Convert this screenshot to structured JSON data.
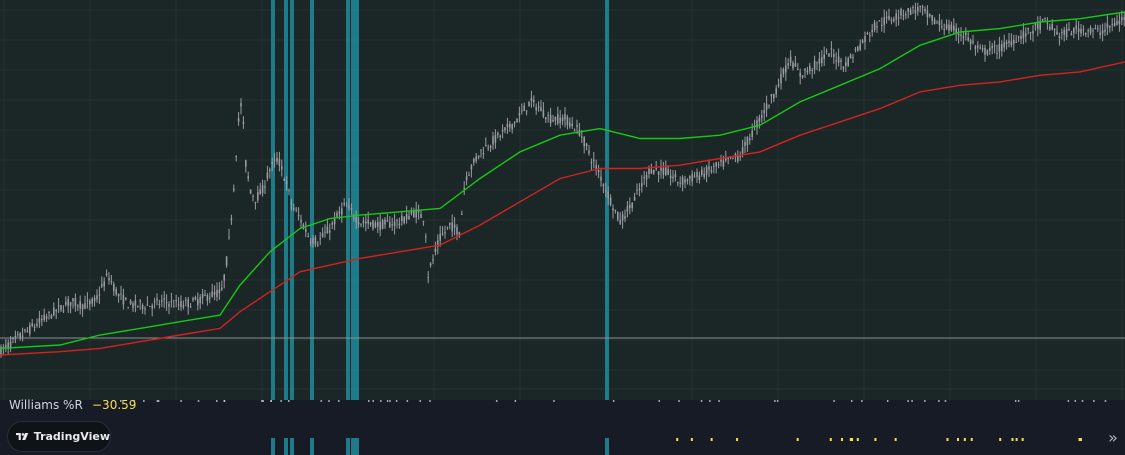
{
  "indicator": {
    "name": "Williams %R",
    "value": "−30.59"
  },
  "brand": {
    "name": "TradingView"
  },
  "icons": {
    "logo": "tradingview-logo-icon",
    "expand": "double-chevron-right-icon"
  },
  "colors": {
    "background": "#1b2626",
    "grid": "#263232",
    "candles": "#9a9ca4",
    "fast_ma": "#16c916",
    "slow_ma": "#d32222",
    "highlight": "#1e8c9c",
    "indicator_value": "#f7e14a",
    "horizontal_line": "#8a9196"
  },
  "chart_data": {
    "type": "candlestick",
    "title": "",
    "series": [
      {
        "name": "",
        "role": "price",
        "color": "#9a9ca4",
        "x": [
          0,
          40,
          70,
          85,
          95,
          108,
          118,
          130,
          150,
          165,
          180,
          195,
          210,
          222,
          228,
          233,
          238,
          242,
          245,
          250,
          255,
          262,
          270,
          278,
          285,
          292,
          300,
          310,
          318,
          330,
          345,
          360,
          380,
          400,
          415,
          425,
          428,
          440,
          450,
          460,
          465,
          480,
          500,
          515,
          530,
          540,
          550,
          565,
          580,
          590,
          600,
          610,
          620,
          635,
          650,
          665,
          680,
          700,
          720,
          740,
          760,
          775,
          790,
          800,
          815,
          830,
          845,
          860,
          875,
          890,
          905,
          920,
          935,
          950,
          965,
          980,
          1000,
          1015,
          1030,
          1045,
          1060,
          1080,
          1100,
          1125
        ],
        "y": [
          0,
          0.09,
          0.15,
          0.14,
          0.15,
          0.23,
          0.17,
          0.14,
          0.14,
          0.15,
          0.14,
          0.15,
          0.17,
          0.18,
          0.3,
          0.46,
          0.68,
          0.76,
          0.58,
          0.49,
          0.46,
          0.48,
          0.55,
          0.58,
          0.52,
          0.44,
          0.4,
          0.34,
          0.33,
          0.37,
          0.44,
          0.39,
          0.38,
          0.39,
          0.42,
          0.4,
          0.23,
          0.34,
          0.38,
          0.36,
          0.52,
          0.6,
          0.65,
          0.69,
          0.75,
          0.73,
          0.7,
          0.7,
          0.66,
          0.59,
          0.53,
          0.46,
          0.39,
          0.46,
          0.55,
          0.54,
          0.51,
          0.53,
          0.56,
          0.59,
          0.7,
          0.78,
          0.88,
          0.83,
          0.86,
          0.9,
          0.86,
          0.92,
          0.98,
          1.0,
          1.02,
          1.03,
          0.99,
          0.97,
          0.95,
          0.9,
          0.91,
          0.94,
          0.96,
          0.99,
          0.95,
          0.97,
          0.96,
          1.0
        ]
      },
      {
        "name": "",
        "role": "fast-ma",
        "color": "#16c916",
        "x": [
          0,
          60,
          100,
          140,
          180,
          220,
          240,
          270,
          300,
          330,
          360,
          400,
          440,
          480,
          520,
          560,
          600,
          640,
          680,
          720,
          760,
          800,
          840,
          880,
          920,
          960,
          1000,
          1040,
          1080,
          1125
        ],
        "y": [
          0.01,
          0.02,
          0.05,
          0.07,
          0.09,
          0.11,
          0.2,
          0.3,
          0.37,
          0.4,
          0.41,
          0.42,
          0.43,
          0.52,
          0.6,
          0.65,
          0.67,
          0.64,
          0.64,
          0.65,
          0.68,
          0.75,
          0.8,
          0.85,
          0.92,
          0.96,
          0.97,
          0.99,
          1.0,
          1.02
        ]
      },
      {
        "name": "",
        "role": "slow-ma",
        "color": "#d32222",
        "x": [
          0,
          60,
          100,
          140,
          180,
          220,
          240,
          270,
          300,
          330,
          360,
          400,
          440,
          480,
          520,
          560,
          600,
          640,
          680,
          720,
          760,
          800,
          840,
          880,
          920,
          960,
          1000,
          1040,
          1080,
          1125
        ],
        "y": [
          -0.01,
          0,
          0.01,
          0.03,
          0.05,
          0.07,
          0.12,
          0.18,
          0.24,
          0.26,
          0.28,
          0.3,
          0.32,
          0.38,
          0.45,
          0.52,
          0.55,
          0.55,
          0.56,
          0.58,
          0.6,
          0.65,
          0.69,
          0.73,
          0.78,
          0.8,
          0.81,
          0.83,
          0.84,
          0.87
        ]
      }
    ],
    "highlight_bars_x": [
      273,
      286,
      292,
      312,
      348,
      353,
      357,
      607
    ],
    "xlim": [
      0,
      1125
    ],
    "ylim": [
      -0.1,
      1.05
    ],
    "grid": true,
    "legend": "none",
    "xlabel": "",
    "ylabel": ""
  }
}
